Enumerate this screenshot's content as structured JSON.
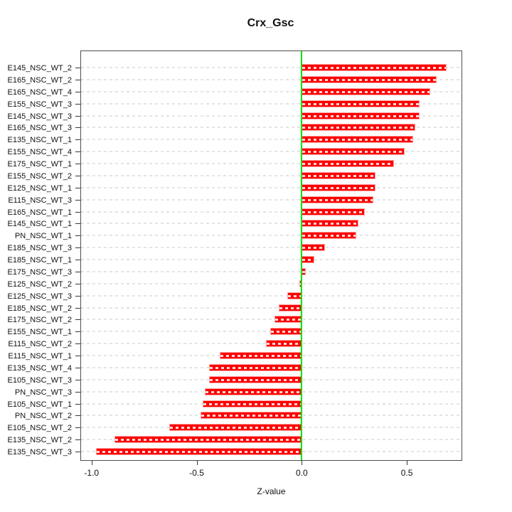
{
  "title": "Crx_Gsc",
  "chart_data": {
    "type": "bar",
    "orientation": "horizontal",
    "title": "Crx_Gsc",
    "xlabel": "Z-value",
    "ylabel": "",
    "xlim": [
      -1.05,
      0.76
    ],
    "x_ticks": [
      -1.0,
      -0.5,
      0.0,
      0.5
    ],
    "x_tick_labels": [
      "-1.0",
      "-0.5",
      "0.0",
      "0.5"
    ],
    "grid": "dashed-horizontal-per-category",
    "legend": "none",
    "zero_reference_line": 0.0,
    "categories": [
      "E145_NSC_WT_2",
      "E165_NSC_WT_2",
      "E165_NSC_WT_4",
      "E155_NSC_WT_3",
      "E145_NSC_WT_3",
      "E165_NSC_WT_3",
      "E135_NSC_WT_1",
      "E155_NSC_WT_4",
      "E175_NSC_WT_1",
      "E155_NSC_WT_2",
      "E125_NSC_WT_1",
      "E115_NSC_WT_3",
      "E165_NSC_WT_1",
      "E145_NSC_WT_1",
      "PN_NSC_WT_1",
      "E185_NSC_WT_3",
      "E185_NSC_WT_1",
      "E175_NSC_WT_3",
      "E125_NSC_WT_2",
      "E125_NSC_WT_3",
      "E185_NSC_WT_2",
      "E175_NSC_WT_2",
      "E155_NSC_WT_1",
      "E115_NSC_WT_2",
      "E115_NSC_WT_1",
      "E135_NSC_WT_4",
      "E105_NSC_WT_3",
      "PN_NSC_WT_3",
      "E105_NSC_WT_1",
      "PN_NSC_WT_2",
      "E105_NSC_WT_2",
      "E135_NSC_WT_2",
      "E135_NSC_WT_3"
    ],
    "values": [
      0.69,
      0.64,
      0.61,
      0.56,
      0.56,
      0.54,
      0.53,
      0.49,
      0.44,
      0.35,
      0.35,
      0.34,
      0.3,
      0.27,
      0.26,
      0.11,
      0.06,
      0.02,
      -0.01,
      -0.07,
      -0.11,
      -0.13,
      -0.15,
      -0.17,
      -0.39,
      -0.44,
      -0.44,
      -0.46,
      -0.47,
      -0.48,
      -0.63,
      -0.89,
      -0.98
    ]
  },
  "colors": {
    "bar_fill": "#fe0000",
    "bar_edge": "#ffa3a3",
    "zero_line": "#00e400",
    "grid": "#e4e4e4",
    "box_border": "#4f4f4f",
    "text": "#111111",
    "background": "#ffffff"
  }
}
